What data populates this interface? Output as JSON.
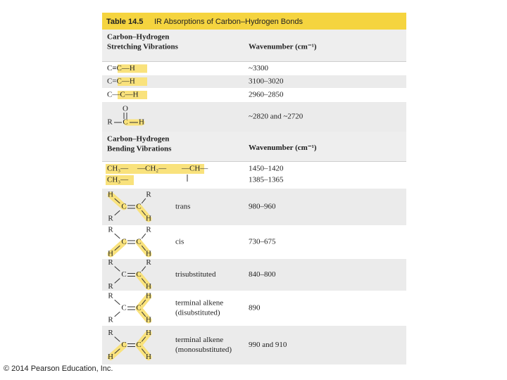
{
  "table": {
    "title_label": "Table 14.5",
    "title_text": "IR Absorptions of Carbon–Hydrogen Bonds",
    "sections": [
      {
        "header_lines": [
          "Carbon–Hydrogen",
          "Stretching Vibrations"
        ],
        "wavenumber_header": "Wavenumber (cm⁻¹)",
        "rows": [
          {
            "structure": "C≡C—H",
            "wavenumber": "~3300"
          },
          {
            "structure": "C=C—H",
            "wavenumber": "3100–3020"
          },
          {
            "structure": "C—C—H",
            "wavenumber": "2960–2850"
          },
          {
            "atoms": [
              "O",
              "R",
              "C",
              "H"
            ],
            "wavenumber": "~2820 and ~2720"
          }
        ]
      },
      {
        "header_lines": [
          "Carbon–Hydrogen",
          "Bending Vibrations"
        ],
        "wavenumber_header": "Wavenumber (cm⁻¹)",
        "rows": [
          {
            "structures": [
              "CH₃—",
              "—CH₂—",
              "—CH—",
              "CH₃—"
            ],
            "wavenumbers": [
              "1450–1420",
              "1385–1365"
            ]
          },
          {
            "atoms": [
              "H",
              "R",
              "C",
              "C",
              "R",
              "H"
            ],
            "description": [
              "trans"
            ],
            "wavenumber": "980–960"
          },
          {
            "atoms": [
              "R",
              "R",
              "C",
              "C",
              "H",
              "H"
            ],
            "description": [
              "cis"
            ],
            "wavenumber": "730–675"
          },
          {
            "atoms": [
              "R",
              "R",
              "C",
              "C",
              "R",
              "H"
            ],
            "description": [
              "trisubstituted"
            ],
            "wavenumber": "840–800"
          },
          {
            "atoms": [
              "R",
              "H",
              "C",
              "C",
              "R",
              "H"
            ],
            "description": [
              "terminal alkene",
              "(disubstituted)"
            ],
            "wavenumber": "890"
          },
          {
            "atoms": [
              "R",
              "H",
              "C",
              "C",
              "H",
              "H"
            ],
            "description": [
              "terminal alkene",
              "(monosubstituted)"
            ],
            "wavenumber": "990 and 910"
          }
        ]
      }
    ]
  },
  "footer": {
    "copyright": "© 2014 Pearson Education, Inc."
  }
}
